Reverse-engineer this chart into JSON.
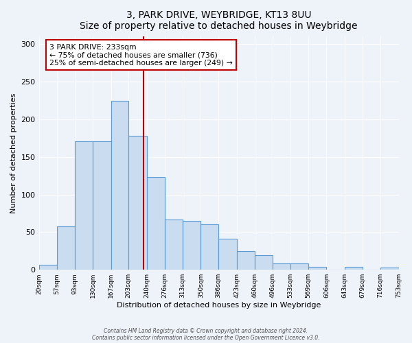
{
  "title": "3, PARK DRIVE, WEYBRIDGE, KT13 8UU",
  "subtitle": "Size of property relative to detached houses in Weybridge",
  "xlabel": "Distribution of detached houses by size in Weybridge",
  "ylabel": "Number of detached properties",
  "bar_values": [
    7,
    58,
    171,
    171,
    225,
    178,
    123,
    67,
    65,
    60,
    41,
    25,
    19,
    8,
    8,
    4,
    0,
    4,
    0,
    3
  ],
  "bin_edges": [
    20,
    57,
    93,
    130,
    167,
    203,
    240,
    276,
    313,
    350,
    386,
    423,
    460,
    496,
    533,
    569,
    606,
    643,
    679,
    716,
    753
  ],
  "tick_labels": [
    "20sqm",
    "57sqm",
    "93sqm",
    "130sqm",
    "167sqm",
    "203sqm",
    "240sqm",
    "276sqm",
    "313sqm",
    "350sqm",
    "386sqm",
    "423sqm",
    "460sqm",
    "496sqm",
    "533sqm",
    "569sqm",
    "606sqm",
    "643sqm",
    "679sqm",
    "716sqm",
    "753sqm"
  ],
  "property_size": 233,
  "vline_label": "3 PARK DRIVE: 233sqm",
  "annotation_line1": "← 75% of detached houses are smaller (736)",
  "annotation_line2": "25% of semi-detached houses are larger (249) →",
  "bar_facecolor": "#c9dcf0",
  "bar_edgecolor": "#5b9bd5",
  "vline_color": "#c00000",
  "annotation_box_edgecolor": "#c00000",
  "ylim": [
    0,
    310
  ],
  "yticks": [
    0,
    50,
    100,
    150,
    200,
    250,
    300
  ],
  "footer1": "Contains HM Land Registry data © Crown copyright and database right 2024.",
  "footer2": "Contains public sector information licensed under the Open Government Licence v3.0.",
  "background_color": "#eef2f9",
  "plot_background": "#eef2f9"
}
